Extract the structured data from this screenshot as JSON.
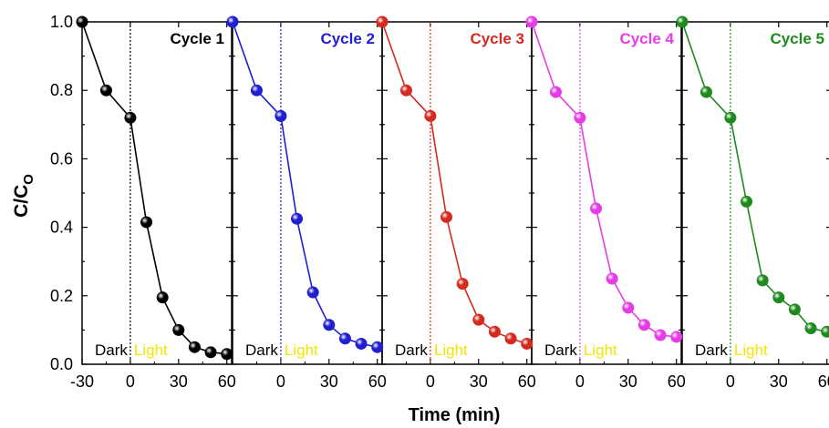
{
  "chart_data": {
    "type": "line",
    "ylabel_main": "C/C",
    "ylabel_sub": "O",
    "xlabel": "Time (min)",
    "ylim": [
      0,
      1.0
    ],
    "yticks": [
      "0.0",
      "0.2",
      "0.4",
      "0.6",
      "0.8",
      "1.0"
    ],
    "xlim": [
      -30,
      63
    ],
    "xticks_first": [
      "-30",
      "0",
      "30",
      "60"
    ],
    "xticks_rest": [
      "0",
      "30",
      "60"
    ],
    "dark_label": "Dark",
    "light_label": "Light",
    "light_label_color": "#f2e600",
    "x": [
      -30,
      -15,
      0,
      10,
      20,
      30,
      40,
      50,
      60
    ],
    "series": [
      {
        "name": "Cycle 1",
        "color": "#000000",
        "values": [
          1.0,
          0.8,
          0.72,
          0.415,
          0.195,
          0.1,
          0.05,
          0.035,
          0.03
        ]
      },
      {
        "name": "Cycle 2",
        "color": "#1f1fcf",
        "values": [
          1.0,
          0.8,
          0.725,
          0.425,
          0.21,
          0.115,
          0.075,
          0.06,
          0.05
        ]
      },
      {
        "name": "Cycle 3",
        "color": "#d42a1f",
        "values": [
          1.0,
          0.8,
          0.725,
          0.43,
          0.235,
          0.13,
          0.095,
          0.075,
          0.06
        ]
      },
      {
        "name": "Cycle 4",
        "color": "#e63ce6",
        "values": [
          1.0,
          0.795,
          0.72,
          0.455,
          0.25,
          0.165,
          0.115,
          0.085,
          0.08
        ]
      },
      {
        "name": "Cycle 5",
        "color": "#1e8a1e",
        "values": [
          1.0,
          0.795,
          0.72,
          0.475,
          0.245,
          0.195,
          0.16,
          0.105,
          0.095
        ]
      }
    ]
  }
}
